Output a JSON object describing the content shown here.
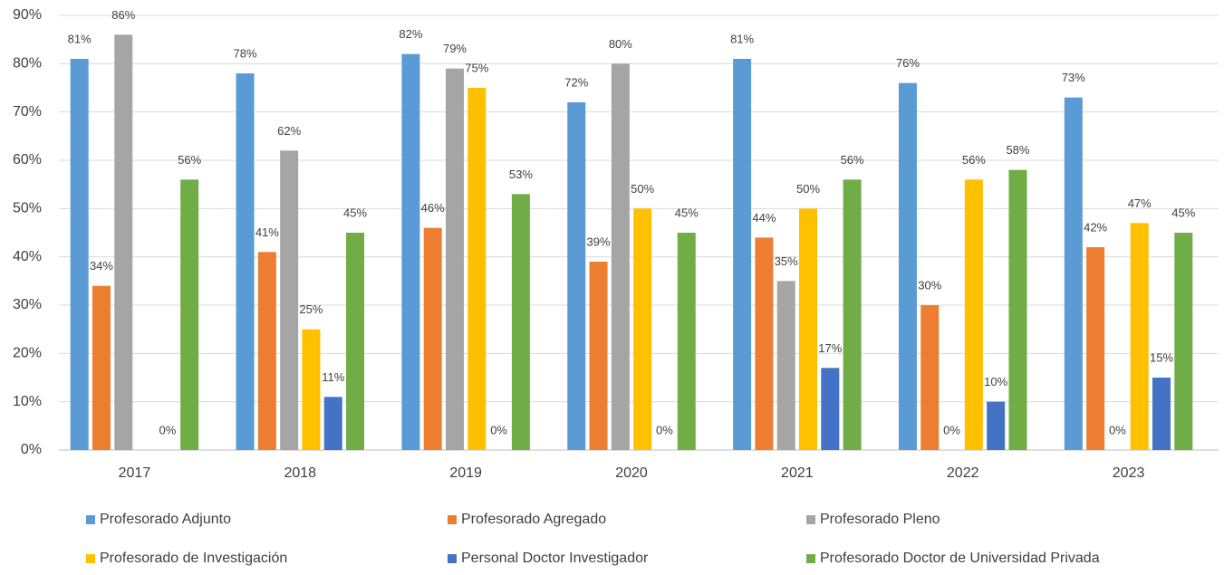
{
  "chart_data": {
    "type": "bar",
    "categories": [
      "2017",
      "2018",
      "2019",
      "2020",
      "2021",
      "2022",
      "2023"
    ],
    "series": [
      {
        "name": "Profesorado Adjunto",
        "color": "#5b9bd5",
        "values": [
          81,
          78,
          82,
          72,
          81,
          76,
          73
        ],
        "value_labels": [
          "81%",
          "78%",
          "82%",
          "72%",
          "81%",
          "76%",
          "73%"
        ]
      },
      {
        "name": "Profesorado Agregado",
        "color": "#ed7d31",
        "values": [
          34,
          41,
          46,
          39,
          44,
          30,
          42
        ],
        "value_labels": [
          "34%",
          "41%",
          "46%",
          "39%",
          "44%",
          "30%",
          "42%"
        ]
      },
      {
        "name": "Profesorado Pleno",
        "color": "#a5a5a5",
        "values": [
          86,
          62,
          79,
          80,
          35,
          0,
          0
        ],
        "value_labels": [
          "86%",
          "62%",
          "79%",
          "80%",
          "35%",
          "0%",
          "0%"
        ]
      },
      {
        "name": "Profesorado de Investigación",
        "color": "#ffc000",
        "values": [
          null,
          25,
          75,
          50,
          50,
          56,
          47
        ],
        "value_labels": [
          null,
          "25%",
          "75%",
          "50%",
          "50%",
          "56%",
          "47%"
        ]
      },
      {
        "name": "Personal Doctor Investigador",
        "color": "#4472c4",
        "values": [
          0,
          11,
          0,
          0,
          17,
          10,
          15
        ],
        "value_labels": [
          "0%",
          "11%",
          "0%",
          "0%",
          "17%",
          "10%",
          "15%"
        ]
      },
      {
        "name": "Profesorado Doctor de Universidad Privada",
        "color": "#70ad47",
        "values": [
          56,
          45,
          53,
          45,
          56,
          58,
          45
        ],
        "value_labels": [
          "56%",
          "45%",
          "53%",
          "45%",
          "56%",
          "58%",
          "45%"
        ]
      }
    ],
    "ylim": [
      0,
      90
    ],
    "yticks": [
      {
        "value": 0,
        "label": "0%"
      },
      {
        "value": 10,
        "label": "10%"
      },
      {
        "value": 20,
        "label": "20%"
      },
      {
        "value": 30,
        "label": "30%"
      },
      {
        "value": 40,
        "label": "40%"
      },
      {
        "value": 50,
        "label": "50%"
      },
      {
        "value": 60,
        "label": "60%"
      },
      {
        "value": 70,
        "label": "70%"
      },
      {
        "value": 80,
        "label": "80%"
      },
      {
        "value": 90,
        "label": "90%"
      }
    ],
    "grid": true,
    "legend": "bottom"
  }
}
